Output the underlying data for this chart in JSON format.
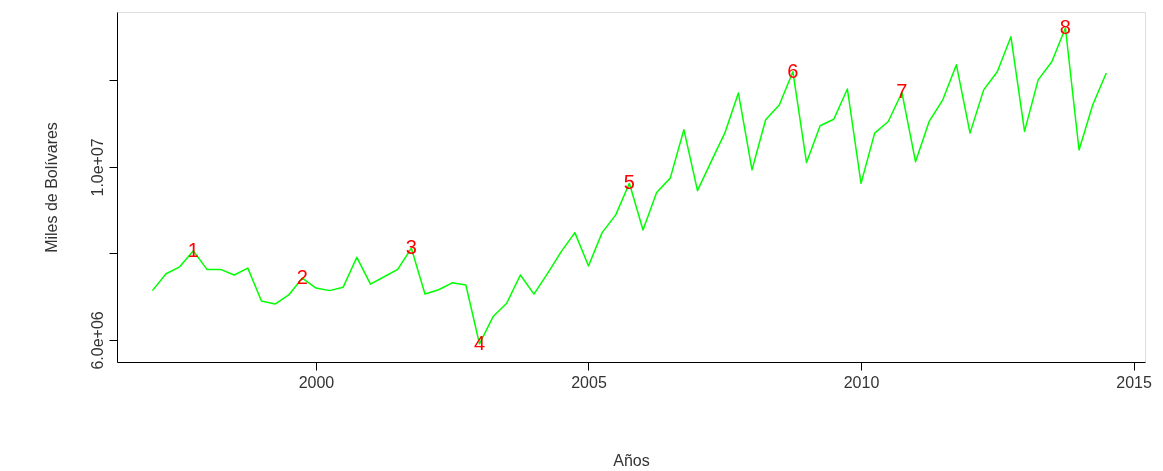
{
  "chart_data": {
    "type": "line",
    "xlabel": "Años",
    "ylabel": "Miles de Bolívares",
    "x": [
      1997,
      1997.25,
      1997.5,
      1997.75,
      1998,
      1998.25,
      1998.5,
      1998.75,
      1999,
      1999.25,
      1999.5,
      1999.75,
      2000,
      2000.25,
      2000.5,
      2000.75,
      2001,
      2001.25,
      2001.5,
      2001.75,
      2002,
      2002.25,
      2002.5,
      2002.75,
      2003,
      2003.25,
      2003.5,
      2003.75,
      2004,
      2004.25,
      2004.5,
      2004.75,
      2005,
      2005.25,
      2005.5,
      2005.75,
      2006,
      2006.25,
      2006.5,
      2006.75,
      2007,
      2007.25,
      2007.5,
      2007.75,
      2008,
      2008.25,
      2008.5,
      2008.75,
      2009,
      2009.25,
      2009.5,
      2009.75,
      2010,
      2010.25,
      2010.5,
      2010.75,
      2011,
      2011.25,
      2011.5,
      2011.75,
      2012,
      2012.25,
      2012.5,
      2012.75,
      2013,
      2013.25,
      2013.5,
      2013.75,
      2014,
      2014.25,
      2014.5
    ],
    "series": [
      {
        "color": "#00ff00",
        "values": [
          7140000,
          7530000,
          7690000,
          8060000,
          7630000,
          7630000,
          7500000,
          7660000,
          6900000,
          6830000,
          7040000,
          7430000,
          7200000,
          7140000,
          7220000,
          7910000,
          7290000,
          7460000,
          7630000,
          8120000,
          7060000,
          7160000,
          7320000,
          7270000,
          5910000,
          6540000,
          6850000,
          7500000,
          7060000,
          7540000,
          8040000,
          8480000,
          7710000,
          8480000,
          8890000,
          9620000,
          8540000,
          9410000,
          9740000,
          10860000,
          9450000,
          10120000,
          10780000,
          11710000,
          9930000,
          11090000,
          11430000,
          12200000,
          10100000,
          10950000,
          11100000,
          11800000,
          9620000,
          10780000,
          11050000,
          11720000,
          10120000,
          11050000,
          11550000,
          12360000,
          10780000,
          11780000,
          12200000,
          13010000,
          10820000,
          12010000,
          12430000,
          13210000,
          10390000,
          11430000,
          12170000
        ]
      }
    ],
    "xlim": [
      1996.35,
      2015.21
    ],
    "xticks": [
      2000,
      2005,
      2010,
      2015
    ],
    "ylim": [
      5490000,
      13580000
    ],
    "yticks": [
      {
        "value": 6000000,
        "label": "6.0e+06"
      },
      {
        "value": 8000000,
        "label": null
      },
      {
        "value": 10000000,
        "label": "1.0e+07"
      },
      {
        "value": 12000000,
        "label": null
      }
    ],
    "annotations": [
      {
        "text": "1",
        "x": 1997.75,
        "y": 8060000
      },
      {
        "text": "2",
        "x": 1999.75,
        "y": 7430000
      },
      {
        "text": "3",
        "x": 2001.75,
        "y": 8120000
      },
      {
        "text": "4",
        "x": 2003,
        "y": 5910000
      },
      {
        "text": "5",
        "x": 2005.75,
        "y": 9620000
      },
      {
        "text": "6",
        "x": 2008.75,
        "y": 12200000
      },
      {
        "text": "7",
        "x": 2010.75,
        "y": 11720000
      },
      {
        "text": "8",
        "x": 2013.75,
        "y": 13210000
      }
    ],
    "marker": "none",
    "line_style": "solid"
  }
}
